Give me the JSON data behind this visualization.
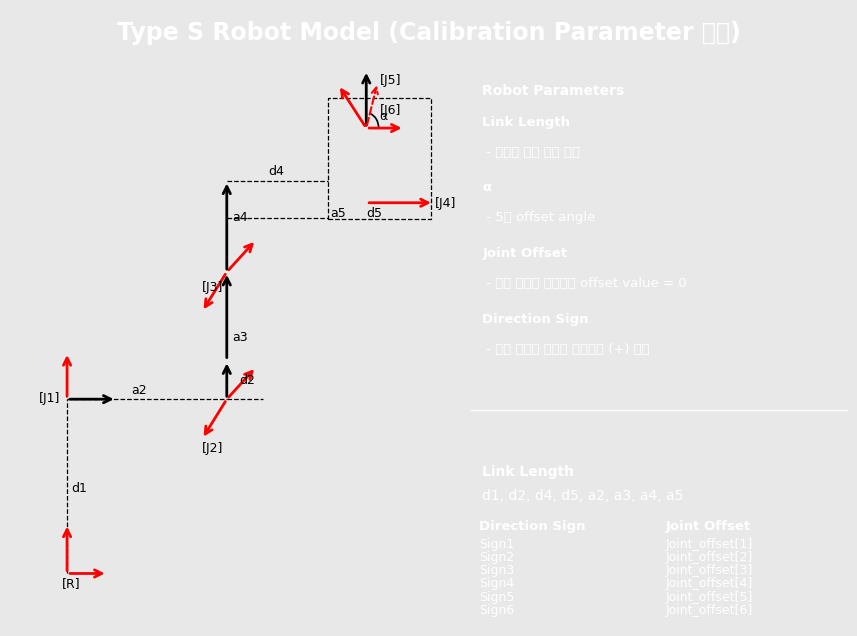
{
  "title": "Type S Robot Model (Calibration Parameter 적용)",
  "title_bg": "#1c1c9c",
  "title_color": "#ffffff",
  "panel_bg": "#e8e8e8",
  "right_bg": "#5080b0",
  "box_dark": "#3a6090",
  "robot_params_title": "Robot Parameters",
  "link_length_label": "Link Length",
  "link_length_sub": " - 로봇의 측간 링크 거리",
  "alpha_label": "α",
  "alpha_sub": " - 5축 offset angle",
  "joint_offset_label": "Joint Offset",
  "joint_offset_sub": " - 좌측 정의된 위치에서 offset value = 0",
  "direction_sign_label": "Direction Sign",
  "direction_sign_sub": " - 좌측 정의된 좌표계 기준으로 (+) 방향",
  "link_length_title2": "Link Length",
  "link_length_values": "d1, d2, d4, d5, a2, a3, a4, a5",
  "direction_sign_title": "Direction Sign",
  "direction_sign_lines": [
    "Sign1",
    "Sign2",
    "Sign3",
    "Sign4",
    "Sign5",
    "Sign6"
  ],
  "joint_offset_title": "Joint Offset",
  "joint_offset_lines": [
    "Joint_offset[1]",
    "Joint_offset[2]",
    "Joint_offset[3]",
    "Joint_offset[4]",
    "Joint_offset[5]",
    "Joint_offset[6]"
  ]
}
